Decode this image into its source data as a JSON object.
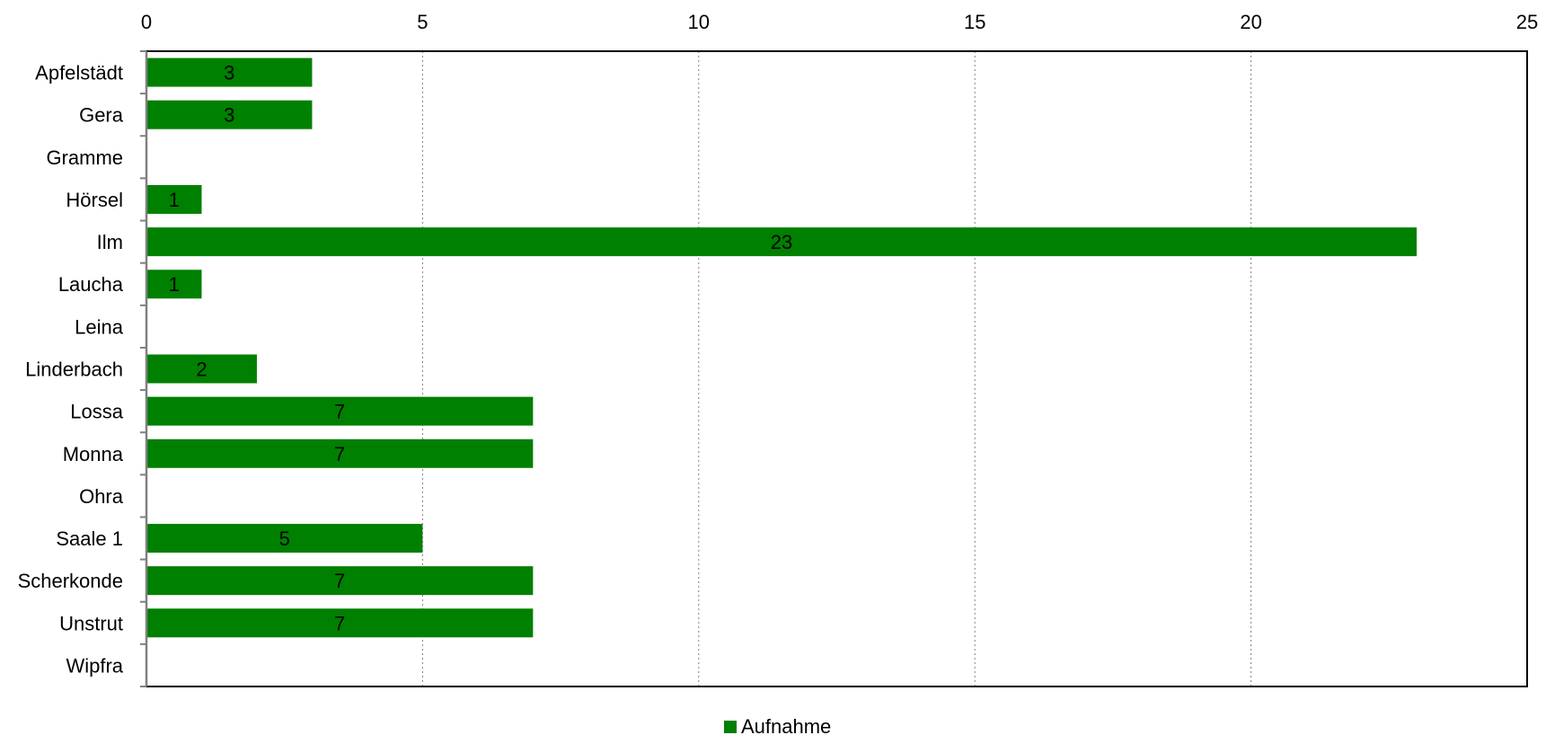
{
  "chart_data": {
    "type": "bar",
    "orientation": "horizontal",
    "categories": [
      "Apfelstädt",
      "Gera",
      "Gramme",
      "Hörsel",
      "Ilm",
      "Laucha",
      "Leina",
      "Linderbach",
      "Lossa",
      "Monna",
      "Ohra",
      "Saale 1",
      "Scherkonde",
      "Unstrut",
      "Wipfra"
    ],
    "series": [
      {
        "name": "Aufnahme",
        "color": "#008000",
        "values": [
          3,
          3,
          0,
          1,
          23,
          1,
          0,
          2,
          7,
          7,
          0,
          5,
          7,
          7,
          0
        ],
        "labels": [
          "3",
          "3",
          "",
          "1",
          "23",
          "1",
          "",
          "2",
          "7",
          "7",
          "",
          "5",
          "7",
          "7",
          ""
        ]
      }
    ],
    "xlim": [
      0,
      25
    ],
    "xticks": [
      0,
      5,
      10,
      15,
      20,
      25
    ],
    "x_axis_position": "top",
    "grid": "vertical dotted",
    "legend_position": "bottom-center",
    "title": "",
    "xlabel": "",
    "ylabel": ""
  }
}
